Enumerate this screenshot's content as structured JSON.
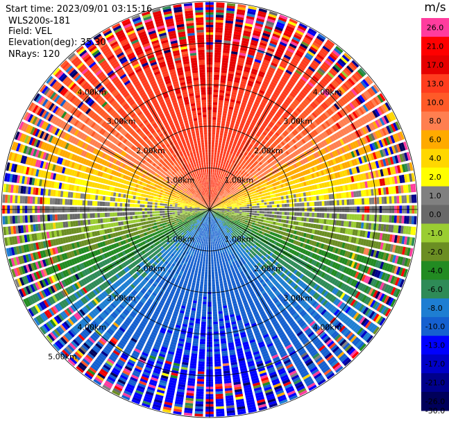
{
  "header": {
    "start_time": "Start time: 2023/09/01 03:15:16",
    "site": "WLS200s-181",
    "field": "Field: VEL",
    "elevation": "Elevation(deg): 35.30",
    "nrays": "NRays: 120"
  },
  "colorbar": {
    "unit": "m/s",
    "bins": [
      {
        "label": "26.0",
        "color": "#ff3c9e"
      },
      {
        "label": "21.0",
        "color": "#ff0000"
      },
      {
        "label": "17.0",
        "color": "#e60000"
      },
      {
        "label": "13.0",
        "color": "#ff3c1e"
      },
      {
        "label": "10.0",
        "color": "#ff5a28"
      },
      {
        "label": "8.0",
        "color": "#ff7f50"
      },
      {
        "label": "6.0",
        "color": "#ffaa00"
      },
      {
        "label": "4.0",
        "color": "#ffd700"
      },
      {
        "label": "2.0",
        "color": "#ffff00"
      },
      {
        "label": "1.0",
        "color": "#808080"
      },
      {
        "label": "0.0",
        "color": "#696969"
      },
      {
        "label": "-1.0",
        "color": "#9acd32"
      },
      {
        "label": "-2.0",
        "color": "#6b8e23"
      },
      {
        "label": "-4.0",
        "color": "#228b22"
      },
      {
        "label": "-6.0",
        "color": "#2e8b57"
      },
      {
        "label": "-8.0",
        "color": "#1e7ed2"
      },
      {
        "label": "-10.0",
        "color": "#1560d0"
      },
      {
        "label": "-13.0",
        "color": "#0000ff"
      },
      {
        "label": "-17.0",
        "color": "#0000c8"
      },
      {
        "label": "-21.0",
        "color": "#00008b"
      },
      {
        "label": "-26.0",
        "color": "#00005a"
      },
      {
        "label": "-30.0",
        "color": ""
      }
    ]
  },
  "chart_data": {
    "type": "heatmap",
    "projection": "polar-ppi",
    "field": "VEL",
    "units": "m/s",
    "n_rays": 120,
    "range_max_km": 5.0,
    "range_rings_km": [
      1,
      2,
      3,
      4,
      5
    ],
    "ring_labels": [
      "1.00km",
      "2.00km",
      "3.00km",
      "4.00km",
      "5.00km"
    ],
    "inner_radial_limit_km": 3.0,
    "wind_pattern": {
      "max_positive_direction_deg": 0,
      "max_negative_direction_deg": 180,
      "near_peak_ms": 13,
      "far_noise_start_km": 4.0
    }
  }
}
